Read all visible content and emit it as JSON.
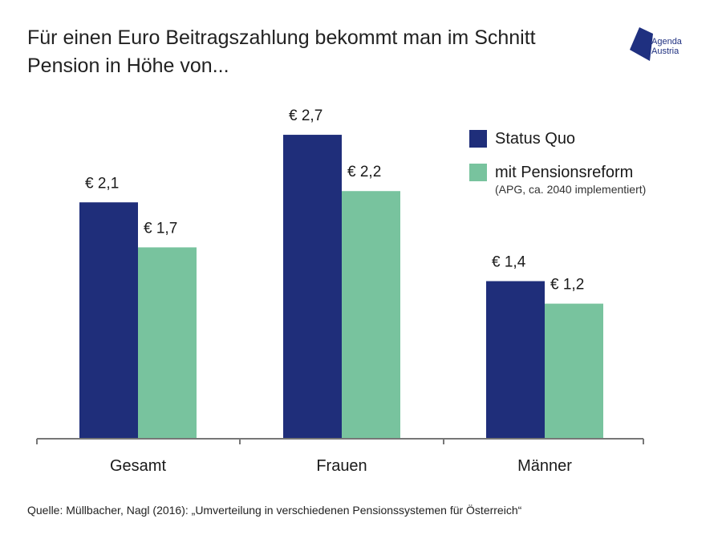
{
  "header": {
    "title_line1": "Für einen Euro Beitragszahlung bekommt man im Schnitt",
    "title_line2": "Pension in Höhe von..."
  },
  "logo": {
    "line1": "Agenda",
    "line2": "Austria",
    "color": "#1f3080"
  },
  "legend": {
    "items": [
      {
        "label": "Status Quo",
        "note": "",
        "color": "#1f2e7a"
      },
      {
        "label": "mit Pensionsreform",
        "note": "(APG, ca. 2040 implementiert)",
        "color": "#78c39e"
      }
    ]
  },
  "source": "Quelle: Müllbacher, Nagl (2016): „Umverteilung in verschiedenen Pensionssystemen für Österreich“",
  "chart_data": {
    "type": "bar",
    "categories": [
      "Gesamt",
      "Frauen",
      "Männer"
    ],
    "series": [
      {
        "name": "Status Quo",
        "values": [
          2.1,
          2.7,
          1.4
        ],
        "labels": [
          "€ 2,1",
          "€ 2,7",
          "€ 1,4"
        ],
        "color": "#1f2e7a"
      },
      {
        "name": "mit Pensionsreform",
        "values": [
          1.7,
          2.2,
          1.2
        ],
        "labels": [
          "€ 1,7",
          "€ 2,2",
          "€ 1,2"
        ],
        "color": "#78c39e"
      }
    ],
    "ylim": [
      0,
      2.85
    ],
    "grid": false,
    "legend_position": "top-right"
  }
}
